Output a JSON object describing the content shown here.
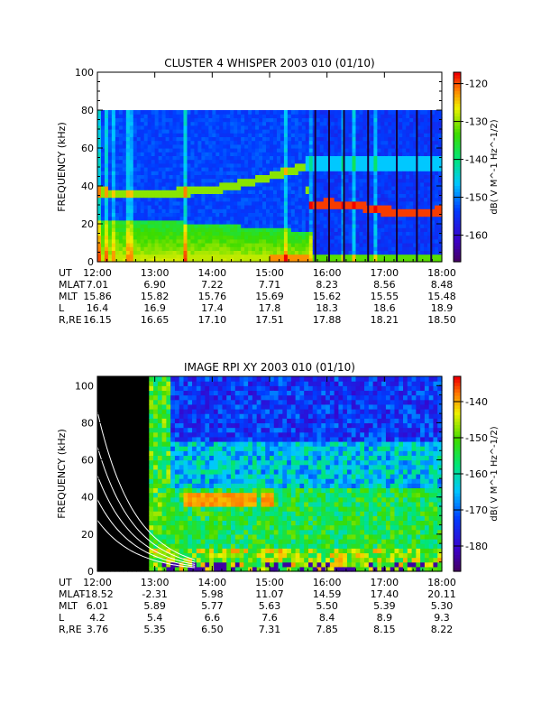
{
  "chart_data": [
    {
      "type": "heatmap",
      "title": "CLUSTER 4 WHISPER 2003 010 (01/10)",
      "ylabel": "FREQUENCY (kHz)",
      "ylim": [
        0,
        100
      ],
      "yticks": [
        "0",
        "20",
        "40",
        "60",
        "80",
        "100"
      ],
      "xticks": [
        "12:00",
        "13:00",
        "14:00",
        "15:00",
        "16:00",
        "17:00",
        "18:00"
      ],
      "xlim_hours": [
        12,
        18
      ],
      "data_ceiling_khz": 80,
      "colorbar": {
        "label": "dB( V M^-1 Hz^-1/2)",
        "range": [
          -167,
          -117
        ],
        "ticks": [
          "-120",
          "-130",
          "-140",
          "-150",
          "-160"
        ]
      },
      "ephemeris": {
        "labels": [
          "UT",
          "MLAT",
          "MLT",
          "L",
          "R,RE"
        ],
        "rows": [
          [
            "12:00",
            "13:00",
            "14:00",
            "15:00",
            "16:00",
            "17:00",
            "18:00"
          ],
          [
            "7.01",
            "6.90",
            "7.22",
            "7.71",
            "8.23",
            "8.56",
            "8.48"
          ],
          [
            "15.86",
            "15.82",
            "15.76",
            "15.69",
            "15.62",
            "15.55",
            "15.48"
          ],
          [
            "16.4",
            "16.9",
            "17.4",
            "17.8",
            "18.3",
            "18.6",
            "18.9"
          ],
          [
            "16.15",
            "16.65",
            "17.10",
            "17.51",
            "17.88",
            "18.21",
            "18.50"
          ]
        ]
      },
      "features": {
        "plasma_line_khz": [
          [
            12.0,
            37
          ],
          [
            13.0,
            36
          ],
          [
            14.0,
            38
          ],
          [
            14.5,
            41
          ],
          [
            15.0,
            45
          ],
          [
            15.3,
            48
          ],
          [
            15.6,
            50
          ],
          [
            15.7,
            30
          ],
          [
            16.0,
            31
          ],
          [
            16.5,
            30
          ],
          [
            17.0,
            27
          ],
          [
            17.5,
            26
          ],
          [
            18.0,
            27
          ]
        ],
        "low_band_top_khz": [
          [
            12.0,
            23
          ],
          [
            13.0,
            22
          ],
          [
            14.0,
            20
          ],
          [
            15.0,
            18
          ],
          [
            15.7,
            16
          ]
        ]
      }
    },
    {
      "type": "heatmap",
      "title": "IMAGE RPI XY 2003 010 (01/10)",
      "ylabel": "FREQUENCY (kHz)",
      "ylim": [
        0,
        105
      ],
      "yticks": [
        "0",
        "20",
        "40",
        "60",
        "80",
        "100"
      ],
      "xticks": [
        "12:00",
        "13:00",
        "14:00",
        "15:00",
        "16:00",
        "17:00",
        "18:00"
      ],
      "xlim_hours": [
        12,
        18
      ],
      "data_gap_end_hours": 12.9,
      "colorbar": {
        "label": "dB( V M^-1 Hz^-1/2)",
        "range": [
          -187,
          -133
        ],
        "ticks": [
          "-140",
          "-150",
          "-160",
          "-170",
          "-180"
        ]
      },
      "ephemeris": {
        "labels": [
          "UT",
          "MLAT",
          "MLT",
          "L",
          "R,RE"
        ],
        "rows": [
          [
            "12:00",
            "13:00",
            "14:00",
            "15:00",
            "16:00",
            "17:00",
            "18:00"
          ],
          [
            "-18.52",
            "-2.31",
            "5.98",
            "11.07",
            "14.59",
            "17.40",
            "20.11"
          ],
          [
            "6.01",
            "5.89",
            "5.77",
            "5.63",
            "5.50",
            "5.39",
            "5.30"
          ],
          [
            "4.2",
            "5.4",
            "6.6",
            "7.6",
            "8.4",
            "8.9",
            "9.3"
          ],
          [
            "3.76",
            "5.35",
            "6.50",
            "7.31",
            "7.85",
            "8.15",
            "8.22"
          ]
        ]
      }
    }
  ]
}
